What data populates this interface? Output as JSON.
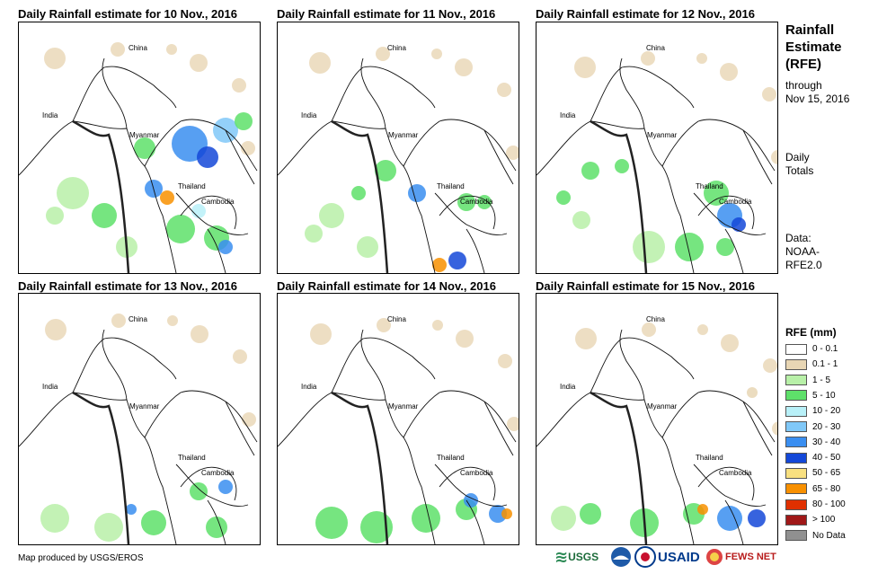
{
  "panels": [
    {
      "title": "Daily Rainfall estimate for 10 Nov., 2016"
    },
    {
      "title": "Daily Rainfall estimate for 11 Nov., 2016"
    },
    {
      "title": "Daily Rainfall estimate for 12 Nov., 2016"
    },
    {
      "title": "Daily Rainfall estimate for 13 Nov., 2016"
    },
    {
      "title": "Daily Rainfall estimate for 14 Nov., 2016"
    },
    {
      "title": "Daily Rainfall estimate for 15 Nov., 2016"
    }
  ],
  "labels": {
    "china": "China",
    "india": "India",
    "myanmar": "Myanmar",
    "thailand": "Thailand",
    "cambodia": "Cambodia"
  },
  "side": {
    "title_line1": "Rainfall",
    "title_line2": "Estimate",
    "title_line3": "(RFE)",
    "through_line1": "through",
    "through_line2": "Nov 15, 2016",
    "daily_line1": "Daily",
    "daily_line2": "Totals",
    "data_line1": "Data:",
    "data_line2": "NOAA-",
    "data_line3": "RFE2.0"
  },
  "legend": {
    "title": "RFE (mm)",
    "items": [
      {
        "label": "0 - 0.1",
        "color": "#ffffff"
      },
      {
        "label": "0.1 - 1",
        "color": "#e8d6b4"
      },
      {
        "label": "1 - 5",
        "color": "#b8f0a8"
      },
      {
        "label": "5 - 10",
        "color": "#5ee06a"
      },
      {
        "label": "10 - 20",
        "color": "#b8f0f8"
      },
      {
        "label": "20 - 30",
        "color": "#80c8f8"
      },
      {
        "label": "30 - 40",
        "color": "#3a8ef0"
      },
      {
        "label": "40 - 50",
        "color": "#1448d8"
      },
      {
        "label": "50 - 65",
        "color": "#f8e080"
      },
      {
        "label": "65 - 80",
        "color": "#f89000"
      },
      {
        "label": "80 - 100",
        "color": "#e03000"
      },
      {
        "label": "> 100",
        "color": "#a01818"
      },
      {
        "label": "No Data",
        "color": "#909090"
      }
    ]
  },
  "credit": "Map produced by USGS/EROS",
  "logos": {
    "usgs": "USGS",
    "usaid": "USAID",
    "fewsnet": "FEWS NET"
  }
}
